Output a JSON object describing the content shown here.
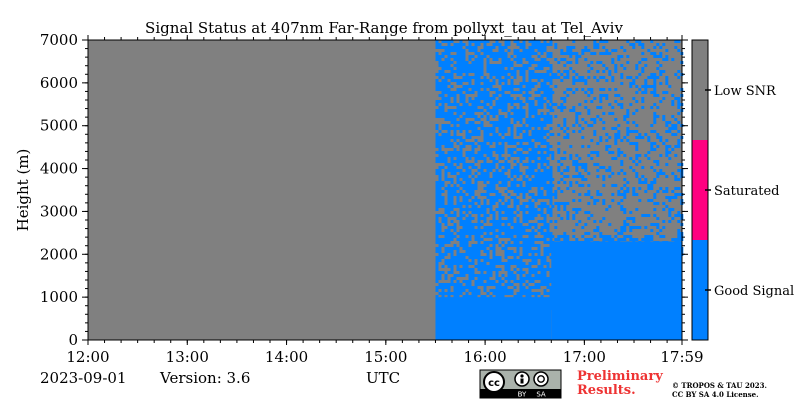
{
  "chart_data": {
    "type": "heatmap",
    "title": "Signal Status at 407nm Far-Range from pollyxt_tau at Tel_Aviv",
    "xlabel": "",
    "ylabel": "Height (m)",
    "xlim": [
      "12:00",
      "17:59"
    ],
    "ylim": [
      0,
      7000
    ],
    "x_ticks": [
      "12:00",
      "13:00",
      "14:00",
      "15:00",
      "16:00",
      "17:00",
      "17:59"
    ],
    "y_ticks": [
      0,
      1000,
      2000,
      3000,
      4000,
      5000,
      6000,
      7000
    ],
    "data_start_time": "15:30",
    "regions": [
      {
        "from": "12:00",
        "to": "15:30",
        "status": "Low SNR"
      },
      {
        "from": "15:30",
        "to": "16:40",
        "status": "mixed",
        "good_signal_fraction_upper": 0.7,
        "solid_good_below_m": 1000
      },
      {
        "from": "16:40",
        "to": "17:59",
        "status": "mixed",
        "good_signal_fraction_upper": 0.25,
        "solid_good_below_m": 2300
      }
    ],
    "colorbar": {
      "categories": [
        {
          "label": "Good Signal",
          "color": "#0080ff"
        },
        {
          "label": "Saturated",
          "color": "#ff0080"
        },
        {
          "label": "Low SNR",
          "color": "#808080"
        }
      ]
    }
  },
  "footer": {
    "date": "2023-09-01",
    "version": "Version: 3.6",
    "utc": "UTC",
    "preliminary_line1": "Preliminary",
    "preliminary_line2": "Results.",
    "copyright_line1": "© TROPOS & TAU 2023.",
    "copyright_line2": "CC BY SA 4.0 License."
  },
  "badge": {
    "cc": "cc",
    "by": "BY",
    "sa": "SA"
  }
}
